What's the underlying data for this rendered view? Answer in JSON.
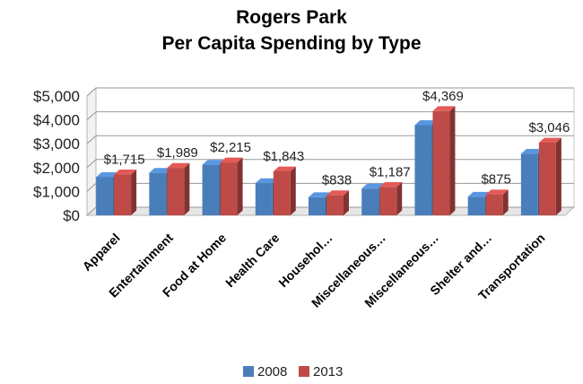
{
  "chart_data": {
    "type": "bar",
    "title_line1": "Rogers Park",
    "title_line2": "Per Capita Spending by Type",
    "xlabel": "",
    "ylabel": "",
    "ylim": [
      0,
      5000
    ],
    "yticks": [
      "$0",
      "$1,000",
      "$2,000",
      "$3,000",
      "$4,000",
      "$5,000"
    ],
    "ytick_values": [
      0,
      1000,
      2000,
      3000,
      4000,
      5000
    ],
    "grid": true,
    "legend_position": "bottom",
    "style": "3d-clustered-column",
    "categories": [
      "Apparel",
      "Entertainment",
      "Food at Home",
      "Health Care",
      "Househol…",
      "Miscellaneous…",
      "Miscellaneous…",
      "Shelter and…",
      "Transportation"
    ],
    "series": [
      {
        "name": "2008",
        "color": "#4a7ebb",
        "values": [
          1600,
          1780,
          2120,
          1350,
          760,
          1120,
          3780,
          780,
          2580
        ]
      },
      {
        "name": "2013",
        "color": "#be4b48",
        "values": [
          1715,
          1989,
          2215,
          1843,
          838,
          1187,
          4369,
          875,
          3046
        ]
      }
    ],
    "data_labels": [
      "$1,715",
      "$1,989",
      "$2,215",
      "$1,843",
      "$838",
      "$1,187",
      "$4,369",
      "$875",
      "$3,046"
    ]
  }
}
